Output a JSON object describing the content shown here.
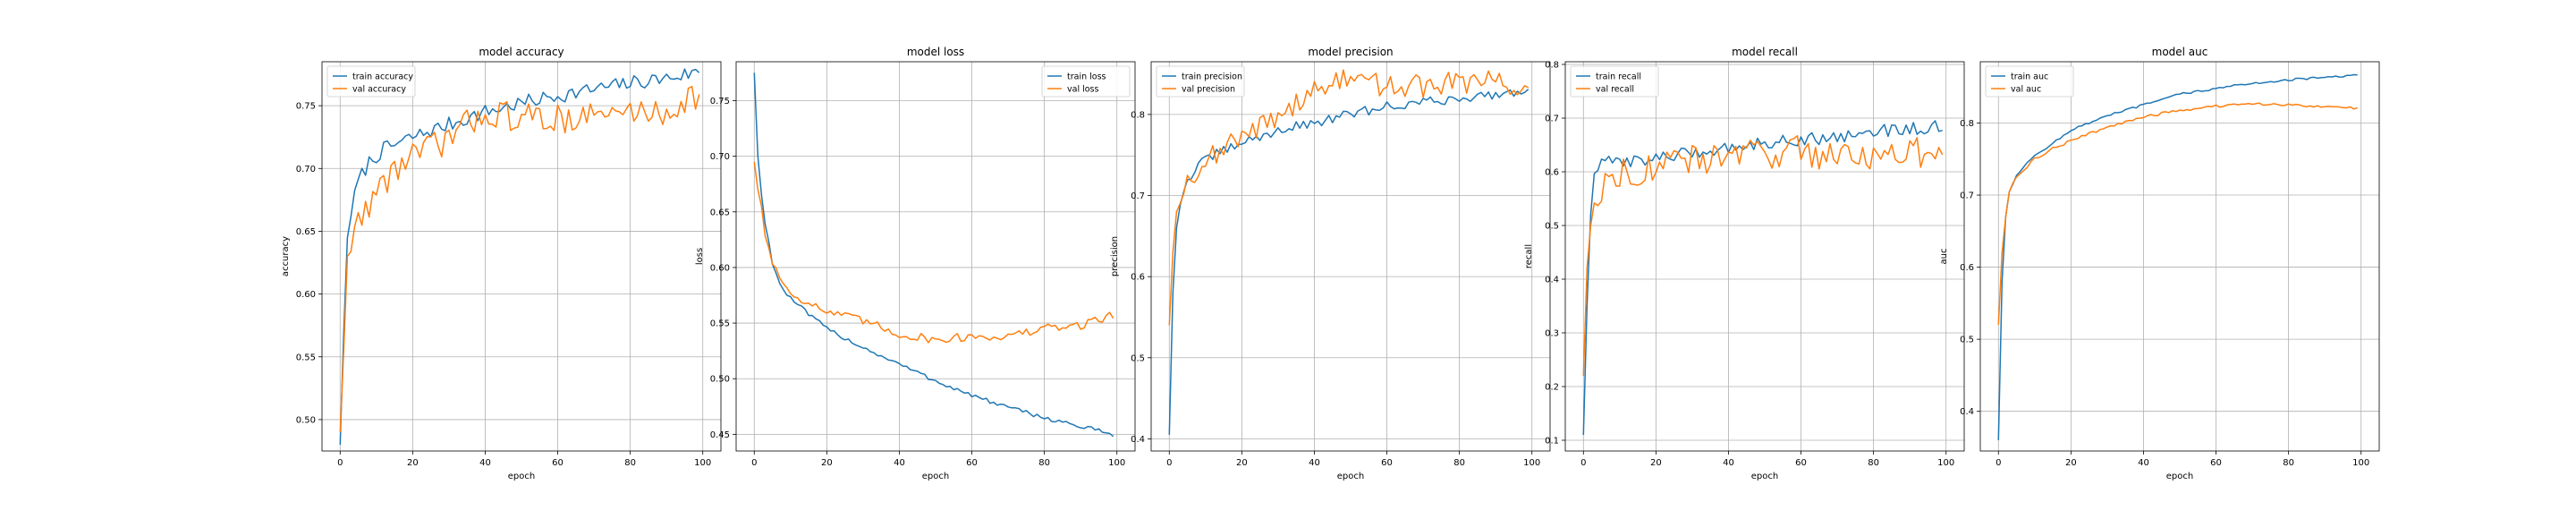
{
  "colors": {
    "train": "#1f77b4",
    "val": "#ff7f0e"
  },
  "chart_data": [
    {
      "type": "line",
      "title": "model accuracy",
      "xlabel": "epoch",
      "ylabel": "accuracy",
      "xlim": [
        -5,
        105
      ],
      "ylim": [
        0.475,
        0.785
      ],
      "xticks": [
        0,
        20,
        40,
        60,
        80,
        100
      ],
      "yticks": [
        0.5,
        0.55,
        0.6,
        0.65,
        0.7,
        0.75
      ],
      "ytick_labels": [
        "0.50",
        "0.55",
        "0.60",
        "0.65",
        "0.70",
        "0.75"
      ],
      "grid": true,
      "legend": "upper left",
      "series": [
        {
          "name": "train accuracy",
          "anchors": [
            [
              0,
              0.48
            ],
            [
              1,
              0.57
            ],
            [
              2,
              0.645
            ],
            [
              3,
              0.665
            ],
            [
              5,
              0.69
            ],
            [
              8,
              0.705
            ],
            [
              12,
              0.715
            ],
            [
              20,
              0.725
            ],
            [
              30,
              0.735
            ],
            [
              40,
              0.745
            ],
            [
              50,
              0.752
            ],
            [
              60,
              0.758
            ],
            [
              70,
              0.763
            ],
            [
              80,
              0.768
            ],
            [
              90,
              0.772
            ],
            [
              99,
              0.777
            ]
          ],
          "noise": 0.006
        },
        {
          "name": "val accuracy",
          "anchors": [
            [
              0,
              0.49
            ],
            [
              1,
              0.555
            ],
            [
              2,
              0.63
            ],
            [
              3,
              0.64
            ],
            [
              6,
              0.665
            ],
            [
              10,
              0.68
            ],
            [
              15,
              0.7
            ],
            [
              20,
              0.71
            ],
            [
              28,
              0.72
            ],
            [
              35,
              0.735
            ],
            [
              40,
              0.745
            ],
            [
              50,
              0.74
            ],
            [
              60,
              0.74
            ],
            [
              70,
              0.742
            ],
            [
              80,
              0.745
            ],
            [
              90,
              0.745
            ],
            [
              99,
              0.76
            ]
          ],
          "noise": 0.012
        }
      ]
    },
    {
      "type": "line",
      "title": "model loss",
      "xlabel": "epoch",
      "ylabel": "loss",
      "xlim": [
        -5,
        105
      ],
      "ylim": [
        0.435,
        0.785
      ],
      "xticks": [
        0,
        20,
        40,
        60,
        80,
        100
      ],
      "yticks": [
        0.45,
        0.5,
        0.55,
        0.6,
        0.65,
        0.7,
        0.75
      ],
      "ytick_labels": [
        "0.45",
        "0.50",
        "0.55",
        "0.60",
        "0.65",
        "0.70",
        "0.75"
      ],
      "grid": true,
      "legend": "upper right",
      "series": [
        {
          "name": "train loss",
          "anchors": [
            [
              0,
              0.775
            ],
            [
              1,
              0.7
            ],
            [
              2,
              0.665
            ],
            [
              3,
              0.64
            ],
            [
              5,
              0.605
            ],
            [
              7,
              0.585
            ],
            [
              10,
              0.572
            ],
            [
              15,
              0.558
            ],
            [
              20,
              0.545
            ],
            [
              30,
              0.528
            ],
            [
              40,
              0.513
            ],
            [
              50,
              0.498
            ],
            [
              60,
              0.485
            ],
            [
              70,
              0.474
            ],
            [
              80,
              0.465
            ],
            [
              90,
              0.457
            ],
            [
              99,
              0.45
            ]
          ],
          "noise": 0.002
        },
        {
          "name": "val loss",
          "anchors": [
            [
              0,
              0.695
            ],
            [
              1,
              0.67
            ],
            [
              2,
              0.655
            ],
            [
              3,
              0.63
            ],
            [
              5,
              0.605
            ],
            [
              8,
              0.585
            ],
            [
              10,
              0.578
            ],
            [
              15,
              0.568
            ],
            [
              20,
              0.56
            ],
            [
              30,
              0.552
            ],
            [
              40,
              0.54
            ],
            [
              50,
              0.535
            ],
            [
              60,
              0.538
            ],
            [
              70,
              0.538
            ],
            [
              80,
              0.545
            ],
            [
              90,
              0.548
            ],
            [
              99,
              0.558
            ]
          ],
          "noise": 0.004
        }
      ]
    },
    {
      "type": "line",
      "title": "model precision",
      "xlabel": "epoch",
      "ylabel": "precision",
      "xlim": [
        -5,
        105
      ],
      "ylim": [
        0.385,
        0.865
      ],
      "xticks": [
        0,
        20,
        40,
        60,
        80,
        100
      ],
      "yticks": [
        0.4,
        0.5,
        0.6,
        0.7,
        0.8
      ],
      "ytick_labels": [
        "0.4",
        "0.5",
        "0.6",
        "0.7",
        "0.8"
      ],
      "grid": true,
      "legend": "upper left",
      "series": [
        {
          "name": "train precision",
          "anchors": [
            [
              0,
              0.405
            ],
            [
              1,
              0.58
            ],
            [
              2,
              0.66
            ],
            [
              3,
              0.69
            ],
            [
              5,
              0.72
            ],
            [
              10,
              0.745
            ],
            [
              15,
              0.755
            ],
            [
              20,
              0.765
            ],
            [
              30,
              0.78
            ],
            [
              40,
              0.79
            ],
            [
              50,
              0.8
            ],
            [
              60,
              0.81
            ],
            [
              70,
              0.815
            ],
            [
              80,
              0.82
            ],
            [
              90,
              0.825
            ],
            [
              99,
              0.83
            ]
          ],
          "noise": 0.006
        },
        {
          "name": "val precision",
          "anchors": [
            [
              0,
              0.54
            ],
            [
              1,
              0.63
            ],
            [
              2,
              0.68
            ],
            [
              3,
              0.695
            ],
            [
              5,
              0.72
            ],
            [
              10,
              0.745
            ],
            [
              20,
              0.77
            ],
            [
              30,
              0.8
            ],
            [
              40,
              0.83
            ],
            [
              50,
              0.845
            ],
            [
              60,
              0.835
            ],
            [
              70,
              0.835
            ],
            [
              80,
              0.84
            ],
            [
              90,
              0.84
            ],
            [
              99,
              0.83
            ]
          ],
          "noise": 0.014
        }
      ]
    },
    {
      "type": "line",
      "title": "model recall",
      "xlabel": "epoch",
      "ylabel": "recall",
      "xlim": [
        -5,
        105
      ],
      "ylim": [
        0.08,
        0.805
      ],
      "xticks": [
        0,
        20,
        40,
        60,
        80,
        100
      ],
      "yticks": [
        0.1,
        0.2,
        0.3,
        0.4,
        0.5,
        0.6,
        0.7,
        0.8
      ],
      "ytick_labels": [
        "0.1",
        "0.2",
        "0.3",
        "0.4",
        "0.5",
        "0.6",
        "0.7",
        "0.8"
      ],
      "grid": true,
      "legend": "upper left",
      "series": [
        {
          "name": "train recall",
          "anchors": [
            [
              0,
              0.11
            ],
            [
              1,
              0.35
            ],
            [
              2,
              0.52
            ],
            [
              3,
              0.6
            ],
            [
              5,
              0.615
            ],
            [
              10,
              0.62
            ],
            [
              20,
              0.625
            ],
            [
              30,
              0.635
            ],
            [
              40,
              0.645
            ],
            [
              50,
              0.655
            ],
            [
              60,
              0.66
            ],
            [
              70,
              0.665
            ],
            [
              80,
              0.675
            ],
            [
              90,
              0.68
            ],
            [
              99,
              0.685
            ]
          ],
          "noise": 0.012
        },
        {
          "name": "val recall",
          "anchors": [
            [
              0,
              0.22
            ],
            [
              1,
              0.42
            ],
            [
              2,
              0.5
            ],
            [
              3,
              0.55
            ],
            [
              5,
              0.57
            ],
            [
              10,
              0.6
            ],
            [
              20,
              0.61
            ],
            [
              30,
              0.62
            ],
            [
              40,
              0.63
            ],
            [
              50,
              0.635
            ],
            [
              60,
              0.64
            ],
            [
              70,
              0.63
            ],
            [
              80,
              0.635
            ],
            [
              90,
              0.63
            ],
            [
              99,
              0.65
            ]
          ],
          "noise": 0.03
        }
      ]
    },
    {
      "type": "line",
      "title": "model auc",
      "xlabel": "epoch",
      "ylabel": "auc",
      "xlim": [
        -5,
        105
      ],
      "ylim": [
        0.345,
        0.885
      ],
      "xticks": [
        0,
        20,
        40,
        60,
        80,
        100
      ],
      "yticks": [
        0.4,
        0.5,
        0.6,
        0.7,
        0.8
      ],
      "ytick_labels": [
        "0.4",
        "0.5",
        "0.6",
        "0.7",
        "0.8"
      ],
      "grid": true,
      "legend": "upper left",
      "series": [
        {
          "name": "train auc",
          "anchors": [
            [
              0,
              0.36
            ],
            [
              1,
              0.58
            ],
            [
              2,
              0.67
            ],
            [
              3,
              0.705
            ],
            [
              5,
              0.728
            ],
            [
              10,
              0.755
            ],
            [
              15,
              0.772
            ],
            [
              20,
              0.79
            ],
            [
              30,
              0.81
            ],
            [
              40,
              0.825
            ],
            [
              50,
              0.84
            ],
            [
              60,
              0.848
            ],
            [
              70,
              0.855
            ],
            [
              80,
              0.86
            ],
            [
              90,
              0.863
            ],
            [
              99,
              0.866
            ]
          ],
          "noise": 0.0015
        },
        {
          "name": "val auc",
          "anchors": [
            [
              0,
              0.52
            ],
            [
              1,
              0.62
            ],
            [
              2,
              0.67
            ],
            [
              3,
              0.705
            ],
            [
              5,
              0.725
            ],
            [
              10,
              0.75
            ],
            [
              15,
              0.765
            ],
            [
              20,
              0.775
            ],
            [
              30,
              0.795
            ],
            [
              40,
              0.808
            ],
            [
              50,
              0.818
            ],
            [
              60,
              0.823
            ],
            [
              70,
              0.826
            ],
            [
              80,
              0.826
            ],
            [
              90,
              0.823
            ],
            [
              99,
              0.82
            ]
          ],
          "noise": 0.002
        }
      ]
    }
  ]
}
